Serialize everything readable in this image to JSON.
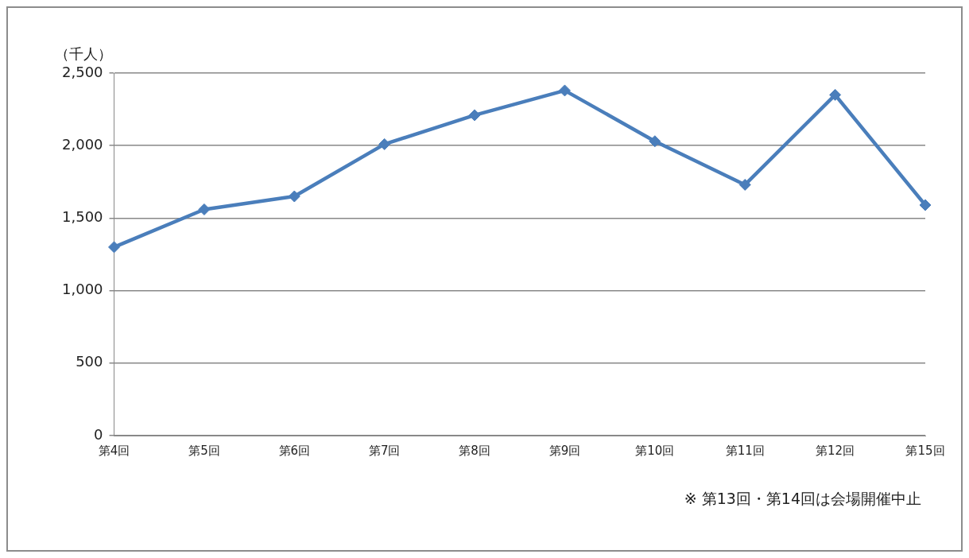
{
  "chart_data": {
    "type": "line",
    "ylabel": "（千人）",
    "categories": [
      "第4回",
      "第5回",
      "第6回",
      "第7回",
      "第8回",
      "第9回",
      "第10回",
      "第11回",
      "第12回",
      "第15回"
    ],
    "series": [
      {
        "color": "#4a7ebb",
        "values": [
          1300,
          1560,
          1650,
          2010,
          2210,
          2380,
          2030,
          1730,
          2350,
          1590
        ]
      }
    ],
    "ylim": [
      0,
      2500
    ],
    "yticks": [
      {
        "value": 0,
        "label": "0"
      },
      {
        "value": 500,
        "label": "500"
      },
      {
        "value": 1000,
        "label": "1,000"
      },
      {
        "value": 1500,
        "label": "1,500"
      },
      {
        "value": 2000,
        "label": "2,000"
      },
      {
        "value": 2500,
        "label": "2,500"
      }
    ],
    "grid": "y",
    "legend": false,
    "marker": "diamond",
    "line_style": "solid",
    "annotations": [
      "※ 第13回・第14回は会場開催中止"
    ]
  }
}
